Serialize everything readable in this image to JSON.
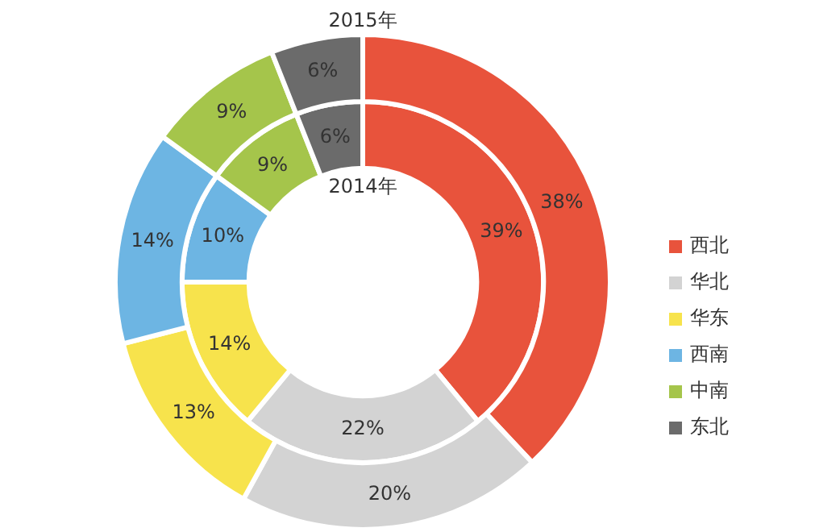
{
  "chart_data": {
    "type": "donut",
    "categories": [
      "西北",
      "华北",
      "华东",
      "西南",
      "中南",
      "东北"
    ],
    "legend": "right",
    "series": [
      {
        "name": "2015年",
        "values": [
          38,
          20,
          13,
          14,
          9,
          6
        ],
        "colors": [
          "#e8533c",
          "#d3d3d3",
          "#f7e34c",
          "#6db5e3",
          "#a5c54b",
          "#6b6b6b"
        ],
        "value_labels": [
          "38%",
          "20%",
          "13%",
          "14%",
          "9%",
          "6%"
        ]
      },
      {
        "name": "2014年",
        "values": [
          39,
          22,
          14,
          10,
          9,
          6
        ],
        "colors": [
          "#e8533c",
          "#d3d3d3",
          "#f7e34c",
          "#6db5e3",
          "#a5c54b",
          "#6b6b6b"
        ],
        "value_labels": [
          "39%",
          "22%",
          "14%",
          "10%",
          "9%",
          "6%"
        ]
      }
    ]
  }
}
